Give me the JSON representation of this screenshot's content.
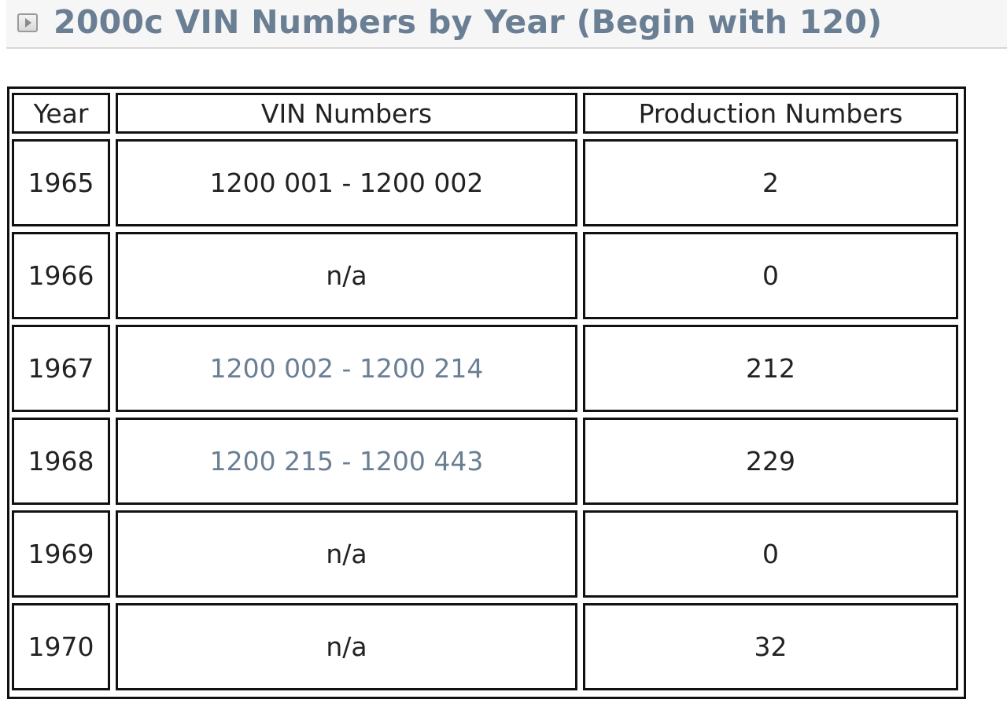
{
  "header": {
    "title": "2000c VIN Numbers by Year (Begin with 120)"
  },
  "table": {
    "columns": [
      "Year",
      "VIN Numbers",
      "Production Numbers"
    ],
    "rows": [
      {
        "year": "1965",
        "vin": "1200 001 - 1200 002",
        "production": "2"
      },
      {
        "year": "1966",
        "vin": "n/a",
        "production": "0"
      },
      {
        "year": "1967",
        "vin": "1200 002 - 1200 214",
        "production": "212"
      },
      {
        "year": "1968",
        "vin": "1200 215 - 1200 443",
        "production": "229"
      },
      {
        "year": "1969",
        "vin": "n/a",
        "production": "0"
      },
      {
        "year": "1970",
        "vin": "n/a",
        "production": "32"
      }
    ]
  },
  "colors": {
    "title": "#6a7f94",
    "link": "#6a7f94",
    "text": "#222222",
    "border": "#111111"
  }
}
